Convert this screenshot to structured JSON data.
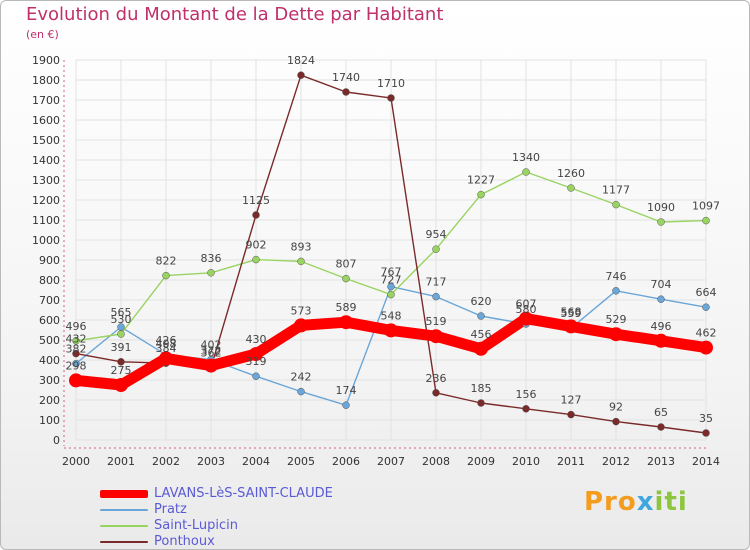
{
  "chart_data": {
    "type": "line",
    "title": "Evolution du Montant de la Dette par Habitant",
    "subtitle": "(en €)",
    "categories": [
      "2000",
      "2001",
      "2002",
      "2003",
      "2004",
      "2005",
      "2006",
      "2007",
      "2008",
      "2009",
      "2010",
      "2011",
      "2012",
      "2013",
      "2014"
    ],
    "yticks": [
      0,
      100,
      200,
      300,
      400,
      500,
      600,
      700,
      800,
      900,
      1000,
      1100,
      1200,
      1300,
      1400,
      1500,
      1600,
      1700,
      1800,
      1900
    ],
    "ylim": [
      0,
      1900
    ],
    "grid": true,
    "legend_position": "bottom-left",
    "series": [
      {
        "name": "LAVANS-LèS-SAINT-CLAUDE",
        "color": "#ff0000",
        "values": [
          298,
          275,
          408,
          372,
          430,
          573,
          589,
          548,
          519,
          456,
          607,
          568,
          529,
          496,
          462
        ]
      },
      {
        "name": "Pratz",
        "color": "#6aa6d8",
        "values": [
          382,
          565,
          426,
          402,
          319,
          242,
          174,
          767,
          717,
          620,
          580,
          559,
          746,
          704,
          664
        ]
      },
      {
        "name": "Saint-Lupicin",
        "color": "#99d362",
        "values": [
          496,
          530,
          822,
          836,
          902,
          893,
          807,
          727,
          954,
          1227,
          1340,
          1260,
          1177,
          1090,
          1097
        ]
      },
      {
        "name": "Ponthoux",
        "color": "#7b2a2a",
        "values": [
          432,
          391,
          384,
          362,
          1125,
          1824,
          1740,
          1710,
          236,
          185,
          156,
          127,
          92,
          65,
          35
        ]
      }
    ]
  },
  "brand": {
    "part1": "Pro",
    "part2": "x",
    "part3": "iti"
  }
}
